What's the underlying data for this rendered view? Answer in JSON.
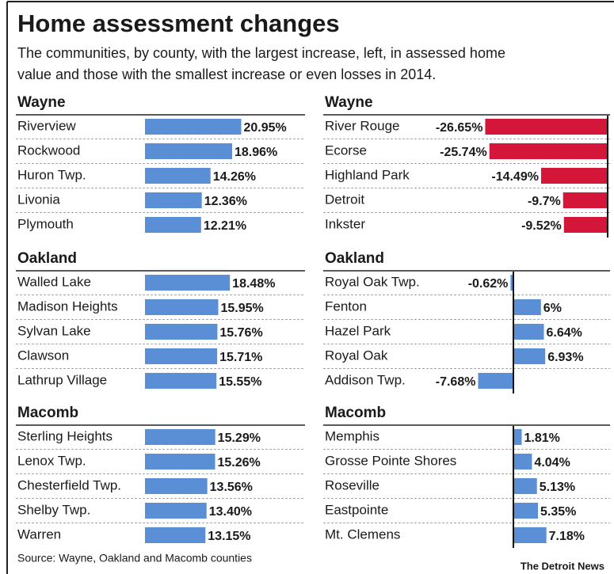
{
  "title": "Home assessment changes",
  "subtitle": [
    "The communities, by county, with the largest increase, left, in assessed home",
    "value and those with the smallest increase or even losses in 2014."
  ],
  "source": "Source: Wayne, Oakland and Macomb counties",
  "credit": "The Detroit News",
  "chart_data": [
    {
      "type": "bar",
      "orientation": "horizontal",
      "title": "Wayne",
      "color": "#5a8fd6",
      "categories": [
        "Riverview",
        "Rockwood",
        "Huron Twp.",
        "Livonia",
        "Plymouth"
      ],
      "values": [
        20.95,
        18.96,
        14.26,
        12.36,
        12.21
      ],
      "value_labels": [
        "20.95%",
        "18.96%",
        "14.26%",
        "12.36%",
        "12.21%"
      ]
    },
    {
      "type": "bar",
      "orientation": "horizontal",
      "title": "Wayne",
      "color": "#d4163a",
      "categories": [
        "River Rouge",
        "Ecorse",
        "Highland Park",
        "Detroit",
        "Inkster"
      ],
      "values": [
        -26.65,
        -25.74,
        -14.49,
        -9.7,
        -9.52
      ],
      "value_labels": [
        "-26.65%",
        "-25.74%",
        "-14.49%",
        "-9.7%",
        "-9.52%"
      ]
    },
    {
      "type": "bar",
      "orientation": "horizontal",
      "title": "Oakland",
      "color": "#5a8fd6",
      "categories": [
        "Walled Lake",
        "Madison Heights",
        "Sylvan Lake",
        "Clawson",
        "Lathrup Village"
      ],
      "values": [
        18.48,
        15.95,
        15.76,
        15.71,
        15.55
      ],
      "value_labels": [
        "18.48%",
        "15.95%",
        "15.76%",
        "15.71%",
        "15.55%"
      ]
    },
    {
      "type": "bar",
      "orientation": "horizontal",
      "title": "Oakland",
      "color": "#5a8fd6",
      "categories": [
        "Royal Oak Twp.",
        "Fenton",
        "Hazel Park",
        "Royal Oak",
        "Addison Twp."
      ],
      "values": [
        -0.62,
        6,
        6.64,
        6.93,
        -7.68
      ],
      "value_labels": [
        "-0.62%",
        "6%",
        "6.64%",
        "6.93%",
        "-7.68%"
      ]
    },
    {
      "type": "bar",
      "orientation": "horizontal",
      "title": "Macomb",
      "color": "#5a8fd6",
      "categories": [
        "Sterling Heights",
        "Lenox Twp.",
        "Chesterfield Twp.",
        "Shelby Twp.",
        "Warren"
      ],
      "values": [
        15.29,
        15.26,
        13.56,
        13.4,
        13.15
      ],
      "value_labels": [
        "15.29%",
        "15.26%",
        "13.56%",
        "13.40%",
        "13.15%"
      ]
    },
    {
      "type": "bar",
      "orientation": "horizontal",
      "title": "Macomb",
      "color": "#5a8fd6",
      "categories": [
        "Memphis",
        "Grosse Pointe Shores",
        "Roseville",
        "Eastpointe",
        "Mt. Clemens"
      ],
      "values": [
        1.81,
        4.04,
        5.13,
        5.35,
        7.18
      ],
      "value_labels": [
        "1.81%",
        "4.04%",
        "5.13%",
        "5.35%",
        "7.18%"
      ]
    }
  ]
}
